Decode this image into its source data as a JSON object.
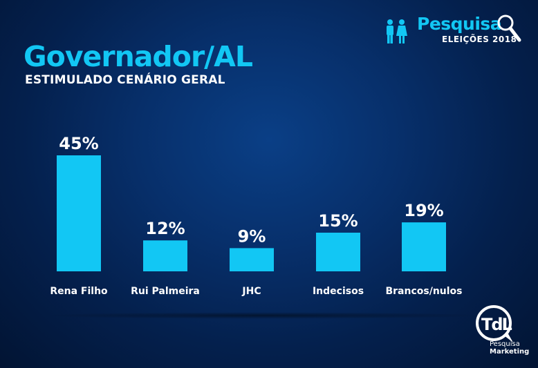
{
  "header": {
    "title": "Governador/AL",
    "subtitle": "ESTIMULADO CENÁRIO GERAL"
  },
  "brand": {
    "name": "Pesquisa",
    "tagline": "ELEIÇÕES 2018",
    "icons": [
      "people-icon",
      "magnifier-icon"
    ]
  },
  "logo": {
    "mark": "TdL",
    "line1": "Pesquisa",
    "line2": "Marketing"
  },
  "colors": {
    "accent": "#12c7f4",
    "bar": "#12c7f4",
    "background": "#072f6a",
    "text": "#ffffff"
  },
  "chart_data": {
    "type": "bar",
    "title": "Governador/AL",
    "subtitle": "ESTIMULADO CENÁRIO GERAL",
    "categories": [
      "Rena Filho",
      "Rui Palmeira",
      "JHC",
      "Indecisos",
      "Brancos/nulos"
    ],
    "values": [
      45,
      12,
      9,
      15,
      19
    ],
    "value_labels": [
      "45%",
      "12%",
      "9%",
      "15%",
      "19%"
    ],
    "unit": "%",
    "ylim": [
      0,
      45
    ],
    "grid": false,
    "legend": "none"
  }
}
